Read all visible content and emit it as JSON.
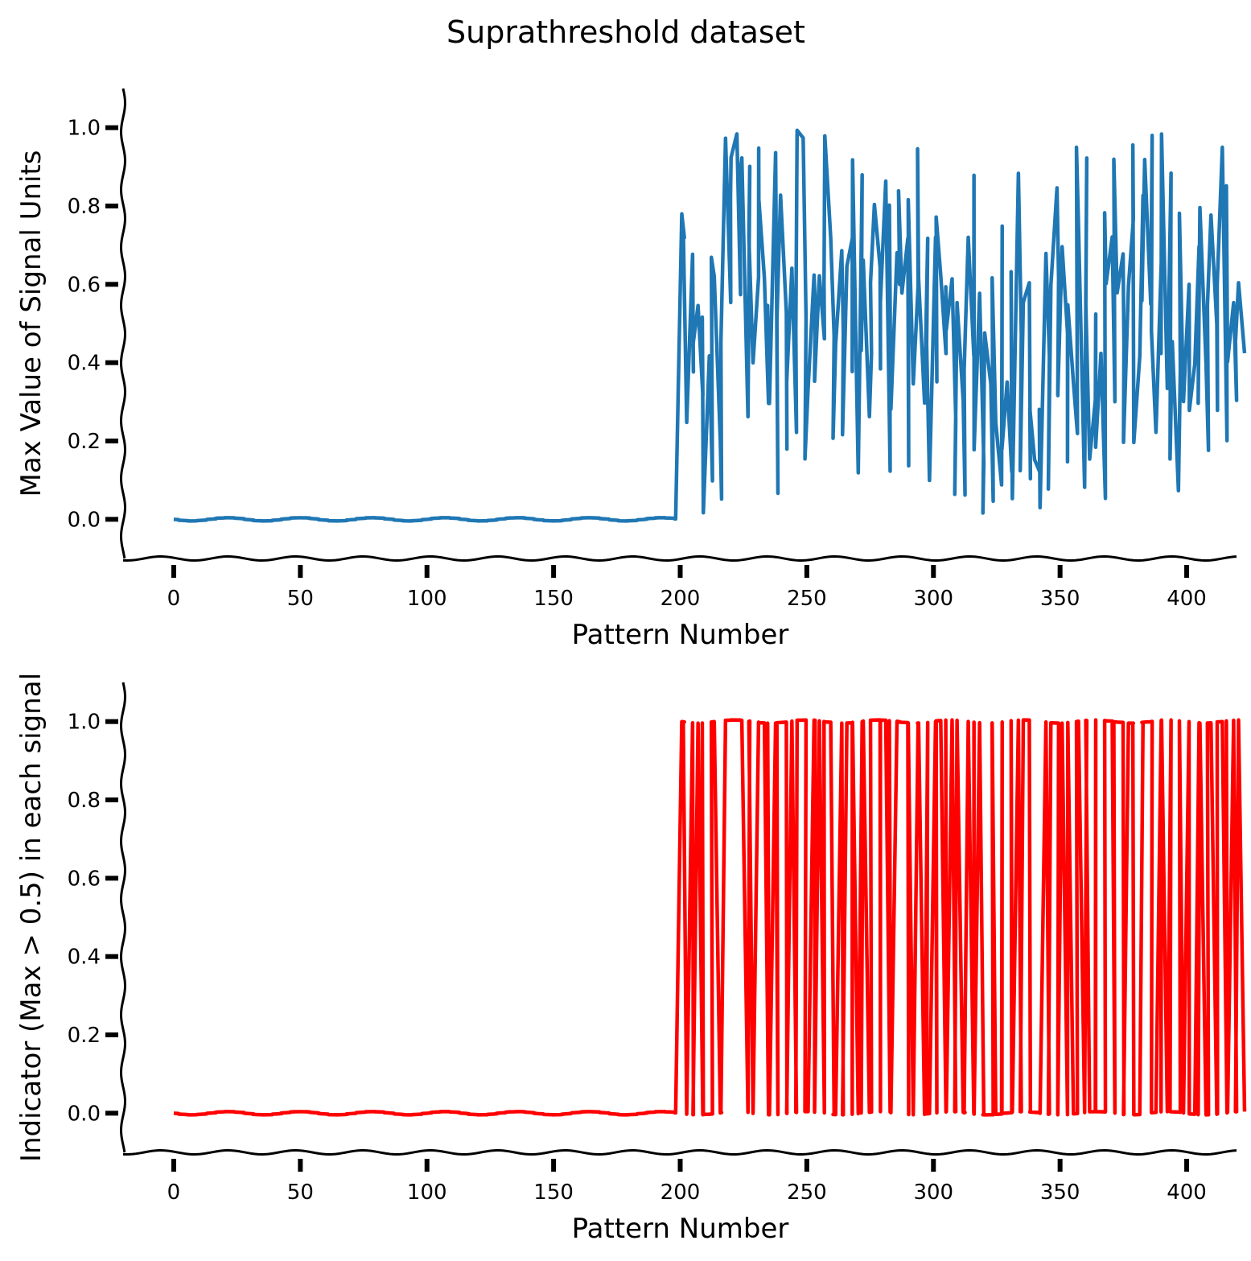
{
  "figure": {
    "title": "Suprathreshold dataset"
  },
  "chart_data": [
    {
      "type": "line",
      "xlabel": "Pattern Number",
      "ylabel": "Max Value of Signal Units",
      "xlim": [
        -20,
        420
      ],
      "ylim": [
        -0.1,
        1.1
      ],
      "xticks": [
        0,
        50,
        100,
        150,
        200,
        250,
        300,
        350,
        400
      ],
      "yticks": [
        0.0,
        0.2,
        0.4,
        0.6,
        0.8,
        1.0
      ],
      "grid": false,
      "style": "xkcd",
      "series": [
        {
          "color": "#1f77b4",
          "x_start": 0,
          "y": [
            0,
            0,
            0,
            0,
            0,
            0,
            0,
            0,
            0,
            0,
            0,
            0,
            0,
            0,
            0,
            0,
            0,
            0,
            0,
            0,
            0,
            0,
            0,
            0,
            0,
            0,
            0,
            0,
            0,
            0,
            0,
            0,
            0,
            0,
            0,
            0,
            0,
            0,
            0,
            0,
            0,
            0,
            0,
            0,
            0,
            0,
            0,
            0,
            0,
            0,
            0,
            0,
            0,
            0,
            0,
            0,
            0,
            0,
            0,
            0,
            0,
            0,
            0,
            0,
            0,
            0,
            0,
            0,
            0,
            0,
            0,
            0,
            0,
            0,
            0,
            0,
            0,
            0,
            0,
            0,
            0,
            0,
            0,
            0,
            0,
            0,
            0,
            0,
            0,
            0,
            0,
            0,
            0,
            0,
            0,
            0,
            0,
            0,
            0,
            0,
            0,
            0,
            0,
            0,
            0,
            0,
            0,
            0,
            0,
            0,
            0,
            0,
            0,
            0,
            0,
            0,
            0,
            0,
            0,
            0,
            0,
            0,
            0,
            0,
            0,
            0,
            0,
            0,
            0,
            0,
            0,
            0,
            0,
            0,
            0,
            0,
            0,
            0,
            0,
            0,
            0,
            0,
            0,
            0,
            0,
            0,
            0,
            0,
            0,
            0,
            0,
            0,
            0,
            0,
            0,
            0,
            0,
            0,
            0,
            0,
            0,
            0,
            0,
            0,
            0,
            0,
            0,
            0,
            0,
            0,
            0,
            0,
            0,
            0,
            0,
            0,
            0,
            0,
            0,
            0,
            0,
            0,
            0,
            0,
            0,
            0,
            0,
            0,
            0,
            0,
            0,
            0,
            0,
            0,
            0,
            0,
            0,
            0,
            0,
            0,
            0.78,
            0.72,
            0.74,
            0.25,
            0.68,
            0.38,
            0.45,
            0.55,
            0.32,
            0.52,
            0.02,
            0.42,
            0.1,
            0.67,
            0.62,
            0.2,
            0.05,
            0.45,
            0.97,
            0.55,
            0.82,
            0.92,
            0.98,
            0.57,
            0.86,
            0.92,
            0.26,
            0.9,
            0.72,
            0.4,
            0.62,
            0.95,
            0.82,
            0.62,
            0.3,
            0.55,
            0.3,
            0.94,
            0.07,
            0.51,
            0.83,
            0.53,
            0.18,
            0.35,
            0.64,
            0.22,
            0.48,
            0.99,
            0.97,
            0.51,
            0.15,
            0.33,
            0.62,
            0.55,
            0.35,
            0.62,
            0.46,
            0.6,
            0.98,
            0.72,
            0.47,
            0.21,
            0.45,
            0.69,
            0.48,
            0.22,
            0.65,
            0.72,
            0.38,
            0.92,
            0.12,
            0.88,
            0.43,
            0.66,
            0.26,
            0.42,
            0.6,
            0.8,
            0.64,
            0.38,
            0.55,
            0.86,
            0.12,
            0.8,
            0.28,
            0.68,
            0.6,
            0.84,
            0.58,
            0.72,
            0.14,
            0.82,
            0.35,
            0.6,
            0.95,
            0.62,
            0.3,
            0.72,
            0.45,
            0.1,
            0.72,
            0.35,
            0.77,
            0.62,
            0.42,
            0.59,
            0.48,
            0.61,
            0.25,
            0.06,
            0.55,
            0.3,
            0.06,
            0.38,
            0.72,
            0.42,
            0.88,
            0.18,
            0.58,
            0.15,
            0.02,
            0.48,
            0.35,
            0.05,
            0.62,
            0.25,
            0.09,
            0.75,
            0.18,
            0.35,
            0.12,
            0.63,
            0.05,
            0.88,
            0.47,
            0.12,
            0.55,
            0.6,
            0.1,
            0.28,
            0.15,
            0.12,
            0.28,
            0.03,
            0.68,
            0.42,
            0.08,
            0.6,
            0.85,
            0.62,
            0.32,
            0.7,
            0.48,
            0.15,
            0.55,
            0.35,
            0.22,
            0.95,
            0.75,
            0.08,
            0.92,
            0.55,
            0.15,
            0.3,
            0.52,
            0.18,
            0.42,
            0.05,
            0.78,
            0.6,
            0.72,
            0.3,
            0.92,
            0.58,
            0.68,
            0.45,
            0.2,
            0.6,
            0.77,
            0.96,
            0.2,
            0.42,
            0.83,
            0.56,
            0.92,
            0.55,
            0.98,
            0.48,
            0.22,
            0.65,
            0.42,
            0.98,
            0.33,
            0.88,
            0.15,
            0.45,
            0.07,
            0.38,
            0.78,
            0.3,
            0.6,
            0.5,
            0.28,
            0.4,
            0.7,
            0.3,
            0.8,
            0.4,
            0.18,
            0.55,
            0.78,
            0.5,
            0.28,
            0.6,
            0.95,
            0.2,
            0.85,
            0.4,
            0.55,
            0.3,
            0.45,
            0.6,
            0.42
          ]
        }
      ]
    },
    {
      "type": "line",
      "xlabel": "Pattern Number",
      "ylabel": "Indicator (Max > 0.5) in each signal",
      "xlim": [
        -20,
        420
      ],
      "ylim": [
        -0.1,
        1.1
      ],
      "xticks": [
        0,
        50,
        100,
        150,
        200,
        250,
        300,
        350,
        400
      ],
      "yticks": [
        0.0,
        0.2,
        0.4,
        0.6,
        0.8,
        1.0
      ],
      "grid": false,
      "style": "xkcd",
      "series": [
        {
          "color": "#ff0000",
          "x_start": 0,
          "threshold": 0.5,
          "derived_from": 0
        }
      ]
    }
  ]
}
